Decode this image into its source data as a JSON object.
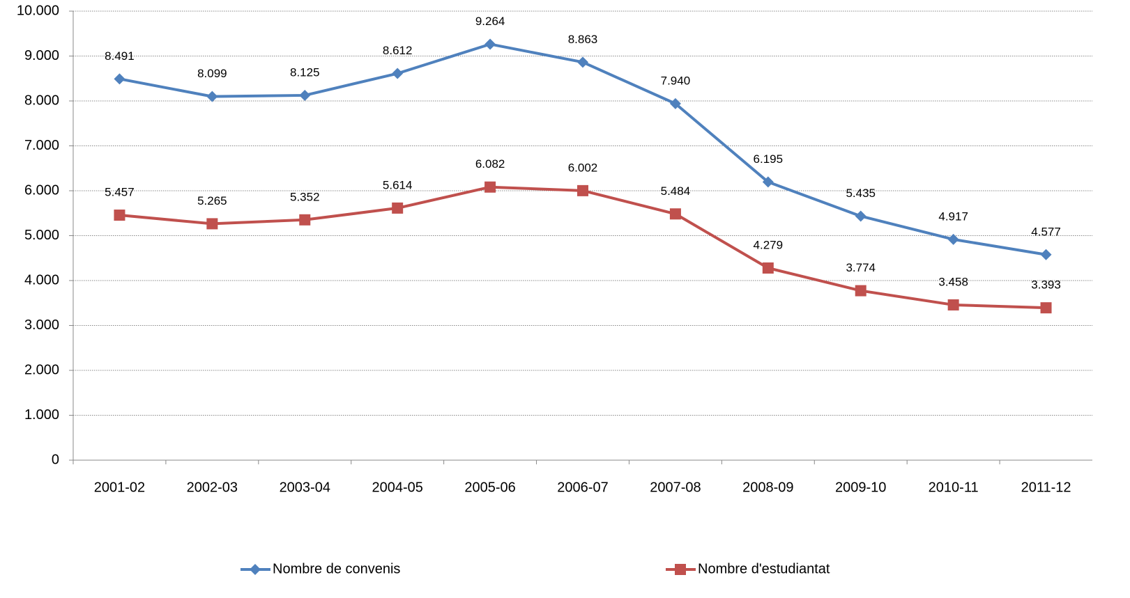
{
  "chart_data": {
    "type": "line",
    "categories": [
      "2001-02",
      "2002-03",
      "2003-04",
      "2004-05",
      "2005-06",
      "2006-07",
      "2007-08",
      "2008-09",
      "2009-10",
      "2010-11",
      "2011-12"
    ],
    "series": [
      {
        "name": "Nombre de convenis",
        "color": "#4f81bd",
        "marker": "diamond",
        "values": [
          8491,
          8099,
          8125,
          8612,
          9264,
          8863,
          7940,
          6195,
          5435,
          4917,
          4577
        ],
        "value_labels": [
          "8.491",
          "8.099",
          "8.125",
          "8.612",
          "9.264",
          "8.863",
          "7.940",
          "6.195",
          "5.435",
          "4.917",
          "4.577"
        ]
      },
      {
        "name": "Nombre d'estudiantat",
        "color": "#c0504d",
        "marker": "square",
        "values": [
          5457,
          5265,
          5352,
          5614,
          6082,
          6002,
          5484,
          4279,
          3774,
          3458,
          3393
        ],
        "value_labels": [
          "5.457",
          "5.265",
          "5.352",
          "5.614",
          "6.082",
          "6.002",
          "5.484",
          "4.279",
          "3.774",
          "3.458",
          "3.393"
        ]
      }
    ],
    "ylim": [
      0,
      10000
    ],
    "yticks": [
      0,
      {
        "value": 1000,
        "label": "1.000"
      },
      {
        "value": 2000,
        "label": "2.000"
      },
      {
        "value": 3000,
        "label": "3.000"
      },
      {
        "value": 4000,
        "label": "4.000"
      },
      {
        "value": 5000,
        "label": "5.000"
      },
      {
        "value": 6000,
        "label": "6.000"
      },
      {
        "value": 7000,
        "label": "7.000"
      },
      {
        "value": 8000,
        "label": "8.000"
      },
      {
        "value": 9000,
        "label": "9.000"
      },
      {
        "value": 10000,
        "label": "10.000"
      }
    ],
    "grid": true,
    "legend": "bottom"
  }
}
